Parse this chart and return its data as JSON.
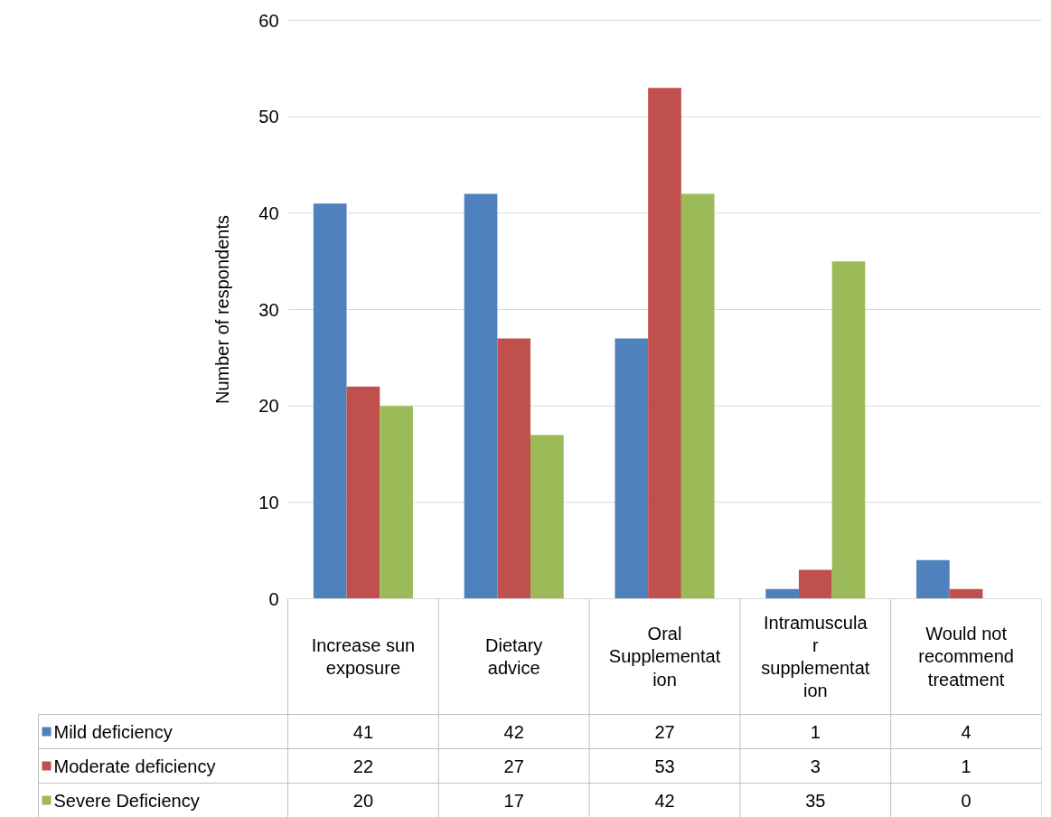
{
  "chart_data": {
    "type": "bar",
    "ylabel": "Number of respondents",
    "categories": [
      "Increase sun exposure",
      "Dietary advice",
      "Oral Supplementation",
      "Intramuscular supplementation",
      "Would not recommend treatment"
    ],
    "series": [
      {
        "name": "Mild deficiency",
        "color": "#4f81bd",
        "values": [
          41,
          42,
          27,
          1,
          4
        ]
      },
      {
        "name": "Moderate deficiency",
        "color": "#c0504d",
        "values": [
          22,
          27,
          53,
          3,
          1
        ]
      },
      {
        "name": "Severe Deficiency",
        "color": "#9bbb59",
        "values": [
          20,
          17,
          42,
          35,
          0
        ]
      }
    ],
    "ylim": [
      0,
      60
    ],
    "yticks": [
      0,
      10,
      20,
      30,
      40,
      50,
      60
    ],
    "grid": "y",
    "legend": "bottom",
    "data_labels": true
  }
}
